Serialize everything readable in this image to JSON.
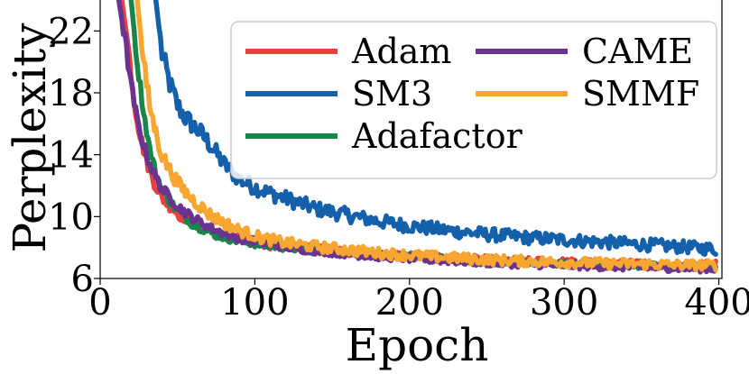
{
  "chart_data": {
    "type": "line",
    "title": "",
    "xlabel": "Epoch",
    "ylabel": "Perplexity",
    "xlim": [
      0,
      402
    ],
    "ylim": [
      6,
      24
    ],
    "xticks": [
      0,
      100,
      200,
      300,
      400
    ],
    "yticks": [
      6,
      10,
      14,
      18,
      22
    ],
    "grid": false,
    "legend_position": "top-right",
    "legend_columns": 2,
    "series": [
      {
        "name": "Adam",
        "color": "#e8403a",
        "noise": 0.25,
        "points": [
          [
            14,
            24
          ],
          [
            18,
            21
          ],
          [
            22,
            17.5
          ],
          [
            26,
            15.2
          ],
          [
            30,
            13.6
          ],
          [
            35,
            12.2
          ],
          [
            40,
            11.2
          ],
          [
            50,
            10.2
          ],
          [
            60,
            9.6
          ],
          [
            75,
            8.9
          ],
          [
            90,
            8.5
          ],
          [
            110,
            8.2
          ],
          [
            130,
            7.95
          ],
          [
            150,
            7.8
          ],
          [
            175,
            7.6
          ],
          [
            200,
            7.45
          ],
          [
            225,
            7.3
          ],
          [
            250,
            7.2
          ],
          [
            275,
            7.1
          ],
          [
            300,
            7.05
          ],
          [
            325,
            6.98
          ],
          [
            350,
            6.93
          ],
          [
            375,
            6.88
          ],
          [
            398,
            6.9
          ]
        ]
      },
      {
        "name": "SM3",
        "color": "#1460aa",
        "noise": 0.35,
        "points": [
          [
            36,
            24
          ],
          [
            40,
            20.5
          ],
          [
            45,
            18.6
          ],
          [
            50,
            17.2
          ],
          [
            55,
            16.4
          ],
          [
            60,
            15.9
          ],
          [
            65,
            15.4
          ],
          [
            70,
            14.8
          ],
          [
            75,
            14.1
          ],
          [
            80,
            13.4
          ],
          [
            90,
            12.4
          ],
          [
            100,
            11.9
          ],
          [
            110,
            11.5
          ],
          [
            125,
            11
          ],
          [
            140,
            10.5
          ],
          [
            160,
            10.1
          ],
          [
            180,
            9.7
          ],
          [
            200,
            9.4
          ],
          [
            225,
            9.1
          ],
          [
            250,
            8.85
          ],
          [
            275,
            8.65
          ],
          [
            300,
            8.5
          ],
          [
            325,
            8.35
          ],
          [
            350,
            8.2
          ],
          [
            375,
            8.05
          ],
          [
            398,
            7.9
          ]
        ]
      },
      {
        "name": "Adafactor",
        "color": "#18864b",
        "noise": 0.2,
        "points": [
          [
            20,
            24
          ],
          [
            24,
            20
          ],
          [
            28,
            16.8
          ],
          [
            32,
            14.4
          ],
          [
            36,
            12.8
          ],
          [
            40,
            11.8
          ],
          [
            45,
            11
          ],
          [
            50,
            10.4
          ],
          [
            60,
            9.5
          ],
          [
            75,
            8.8
          ],
          [
            90,
            8.4
          ],
          [
            110,
            8.1
          ],
          [
            130,
            7.9
          ],
          [
            150,
            7.75
          ],
          [
            175,
            7.55
          ],
          [
            200,
            7.4
          ],
          [
            225,
            7.25
          ],
          [
            250,
            7.1
          ],
          [
            275,
            7
          ],
          [
            300,
            6.95
          ],
          [
            325,
            6.88
          ],
          [
            350,
            6.82
          ],
          [
            375,
            6.78
          ],
          [
            398,
            6.75
          ]
        ]
      },
      {
        "name": "CAME",
        "color": "#6a3391",
        "noise": 0.22,
        "points": [
          [
            12,
            24
          ],
          [
            16,
            21.5
          ],
          [
            20,
            18.5
          ],
          [
            24,
            16.2
          ],
          [
            28,
            14.6
          ],
          [
            32,
            13.4
          ],
          [
            36,
            12.5
          ],
          [
            40,
            11.8
          ],
          [
            50,
            10.7
          ],
          [
            60,
            9.9
          ],
          [
            75,
            9.1
          ],
          [
            90,
            8.6
          ],
          [
            110,
            8.2
          ],
          [
            130,
            7.9
          ],
          [
            150,
            7.7
          ],
          [
            175,
            7.45
          ],
          [
            200,
            7.3
          ],
          [
            225,
            7.15
          ],
          [
            250,
            7.02
          ],
          [
            275,
            6.92
          ],
          [
            300,
            6.85
          ],
          [
            325,
            6.77
          ],
          [
            350,
            6.72
          ],
          [
            375,
            6.67
          ],
          [
            398,
            6.62
          ]
        ]
      },
      {
        "name": "SMMF",
        "color": "#f7a631",
        "noise": 0.3,
        "points": [
          [
            24,
            24
          ],
          [
            28,
            20
          ],
          [
            32,
            17.2
          ],
          [
            36,
            15.4
          ],
          [
            40,
            14
          ],
          [
            45,
            13
          ],
          [
            50,
            12.2
          ],
          [
            55,
            11.6
          ],
          [
            60,
            11.1
          ],
          [
            70,
            10.2
          ],
          [
            80,
            9.6
          ],
          [
            90,
            9.1
          ],
          [
            105,
            8.6
          ],
          [
            120,
            8.3
          ],
          [
            140,
            8.05
          ],
          [
            160,
            7.85
          ],
          [
            180,
            7.65
          ],
          [
            200,
            7.5
          ],
          [
            225,
            7.35
          ],
          [
            250,
            7.22
          ],
          [
            275,
            7.12
          ],
          [
            300,
            7.05
          ],
          [
            325,
            6.98
          ],
          [
            350,
            6.93
          ],
          [
            375,
            6.88
          ],
          [
            398,
            6.85
          ]
        ]
      }
    ]
  }
}
